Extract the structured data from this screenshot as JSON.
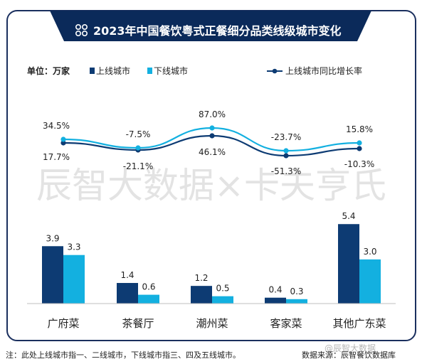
{
  "chart_data": {
    "type": "bar",
    "title": "2023年中国餐饮粤式正餐细分品类线级城市变化",
    "unit_label": "单位：万家",
    "categories": [
      "广府菜",
      "茶餐厅",
      "潮州菜",
      "客家菜",
      "其他广东菜"
    ],
    "series": [
      {
        "name": "上线城市",
        "values": [
          3.9,
          1.4,
          1.2,
          0.4,
          5.4
        ],
        "color": "#0d3b73"
      },
      {
        "name": "下线城市",
        "values": [
          3.3,
          0.6,
          0.5,
          0.3,
          3.0
        ],
        "color": "#13b0e0"
      }
    ],
    "lines": [
      {
        "name": "上线城市同比增长率",
        "values": [
          "17.7%",
          "-21.1%",
          "46.1%",
          "-51.3%",
          "-10.3%"
        ],
        "color": "#0d3b73"
      },
      {
        "name": "",
        "values": [
          "34.5%",
          "-7.5%",
          "87.0%",
          "-23.7%",
          "15.8%"
        ],
        "color": "#13b0e0"
      }
    ],
    "ylim": [
      0,
      6
    ],
    "legend_position": "top",
    "watermark": "辰智大数据×卡夫亨氏"
  },
  "footnote": "注：此处上线城市指一、二线城市，下线城市指三、四及五线城市。",
  "source": "数据来源：辰智餐饮数据库",
  "corner_watermark": "@辰智大数据"
}
